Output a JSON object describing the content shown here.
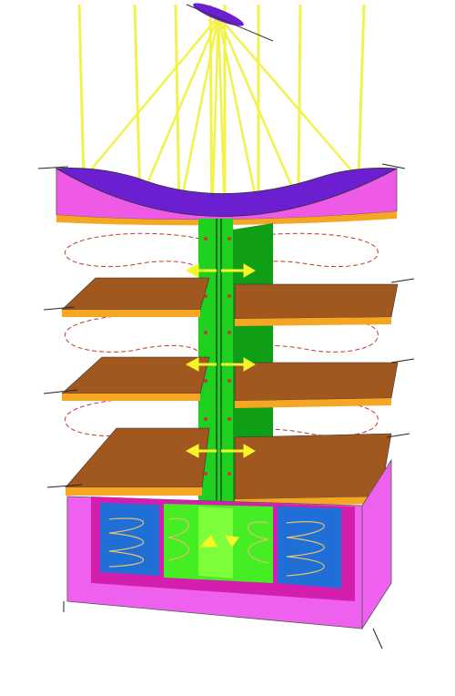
{
  "diagram": {
    "colors": {
      "sunray": "#f2f24a",
      "collector_purple": "#6b1fd1",
      "collector_magenta": "#ee5ae6",
      "orange_edge": "#f5a623",
      "floor_brown": "#a0581f",
      "shaft_green": "#20d020",
      "shaft_green_dark": "#0f9e16",
      "base_magenta": "#ee60ee",
      "base_inner": "#d41fae",
      "water_blue": "#1f6fd6",
      "air_flow_dashed": "#c0392b",
      "arrow_yellow": "#f5f52a"
    },
    "floors": 3,
    "sun_rays": 8,
    "tanks": 2
  }
}
